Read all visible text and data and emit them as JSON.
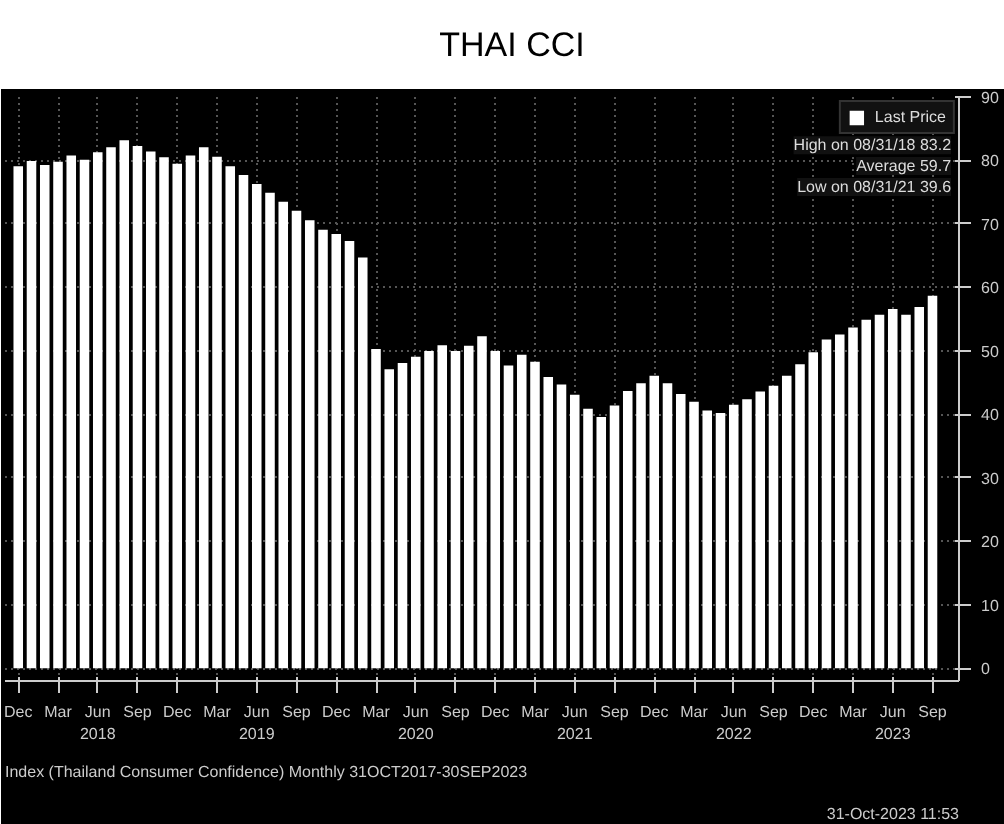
{
  "chart_data": {
    "type": "bar",
    "title": "THAI CCI",
    "x": [
      "2017-12",
      "2018-01",
      "2018-02",
      "2018-03",
      "2018-04",
      "2018-05",
      "2018-06",
      "2018-07",
      "2018-08",
      "2018-09",
      "2018-10",
      "2018-11",
      "2018-12",
      "2019-01",
      "2019-02",
      "2019-03",
      "2019-04",
      "2019-05",
      "2019-06",
      "2019-07",
      "2019-08",
      "2019-09",
      "2019-10",
      "2019-11",
      "2019-12",
      "2020-01",
      "2020-02",
      "2020-03",
      "2020-04",
      "2020-05",
      "2020-06",
      "2020-07",
      "2020-08",
      "2020-09",
      "2020-10",
      "2020-11",
      "2020-12",
      "2021-01",
      "2021-02",
      "2021-03",
      "2021-04",
      "2021-05",
      "2021-06",
      "2021-07",
      "2021-08",
      "2021-09",
      "2021-10",
      "2021-11",
      "2021-12",
      "2022-01",
      "2022-02",
      "2022-03",
      "2022-04",
      "2022-05",
      "2022-06",
      "2022-07",
      "2022-08",
      "2022-09",
      "2022-10",
      "2022-11",
      "2022-12",
      "2023-01",
      "2023-02",
      "2023-03",
      "2023-04",
      "2023-05",
      "2023-06",
      "2023-07",
      "2023-08",
      "2023-09"
    ],
    "series": [
      {
        "name": "Last Price",
        "color": "#ffffff",
        "values": [
          79.1,
          79.9,
          79.3,
          79.8,
          80.8,
          80.1,
          81.3,
          82.1,
          83.2,
          82.3,
          81.4,
          80.5,
          79.5,
          80.8,
          82.1,
          80.6,
          79.1,
          77.7,
          76.3,
          74.9,
          73.5,
          72.1,
          70.6,
          69.1,
          68.4,
          67.3,
          64.7,
          50.3,
          47.1,
          48.1,
          49.1,
          50.0,
          50.9,
          50.0,
          50.8,
          52.3,
          50.0,
          47.7,
          49.4,
          48.3,
          45.9,
          44.7,
          43.1,
          40.9,
          39.6,
          41.4,
          43.7,
          44.9,
          46.1,
          44.9,
          43.2,
          42.0,
          40.6,
          40.2,
          41.5,
          42.4,
          43.6,
          44.5,
          46.1,
          47.9,
          49.8,
          51.8,
          52.6,
          53.7,
          54.9,
          55.7,
          56.6,
          55.7,
          56.9,
          58.7
        ]
      }
    ],
    "xlim": [
      "2017-11",
      "2023-11"
    ],
    "xticks": [
      {
        "value": "2017-12",
        "label": "Dec"
      },
      {
        "value": "2018-03",
        "label": "Mar"
      },
      {
        "value": "2018-06",
        "label": "Jun\n2018"
      },
      {
        "value": "2018-09",
        "label": "Sep"
      },
      {
        "value": "2018-12",
        "label": "Dec"
      },
      {
        "value": "2019-03",
        "label": "Mar"
      },
      {
        "value": "2019-06",
        "label": "Jun\n2019"
      },
      {
        "value": "2019-09",
        "label": "Sep"
      },
      {
        "value": "2019-12",
        "label": "Dec"
      },
      {
        "value": "2020-03",
        "label": "Mar"
      },
      {
        "value": "2020-06",
        "label": "Jun\n2020"
      },
      {
        "value": "2020-09",
        "label": "Sep"
      },
      {
        "value": "2020-12",
        "label": "Dec"
      },
      {
        "value": "2021-03",
        "label": "Mar"
      },
      {
        "value": "2021-06",
        "label": "Jun\n2021"
      },
      {
        "value": "2021-09",
        "label": "Sep"
      },
      {
        "value": "2021-12",
        "label": "Dec"
      },
      {
        "value": "2022-03",
        "label": "Mar"
      },
      {
        "value": "2022-06",
        "label": "Jun\n2022"
      },
      {
        "value": "2022-09",
        "label": "Sep"
      },
      {
        "value": "2022-12",
        "label": "Dec"
      },
      {
        "value": "2023-03",
        "label": "Mar"
      },
      {
        "value": "2023-06",
        "label": "Jun\n2023"
      },
      {
        "value": "2023-09",
        "label": "Sep"
      }
    ],
    "ylim": [
      -2,
      90
    ],
    "yticks": [
      0,
      10,
      20,
      30,
      40,
      50,
      60,
      70,
      80,
      90
    ],
    "grid": true,
    "legend": "top right",
    "annotations": [
      "High on 08/31/18 83.2",
      "Average 59.7",
      "Low on 08/31/21 39.6",
      "Index (Thailand Consumer Confidence) Monthly 31OCT2017-30SEP2023",
      "31-Oct-2023 11:53"
    ]
  }
}
